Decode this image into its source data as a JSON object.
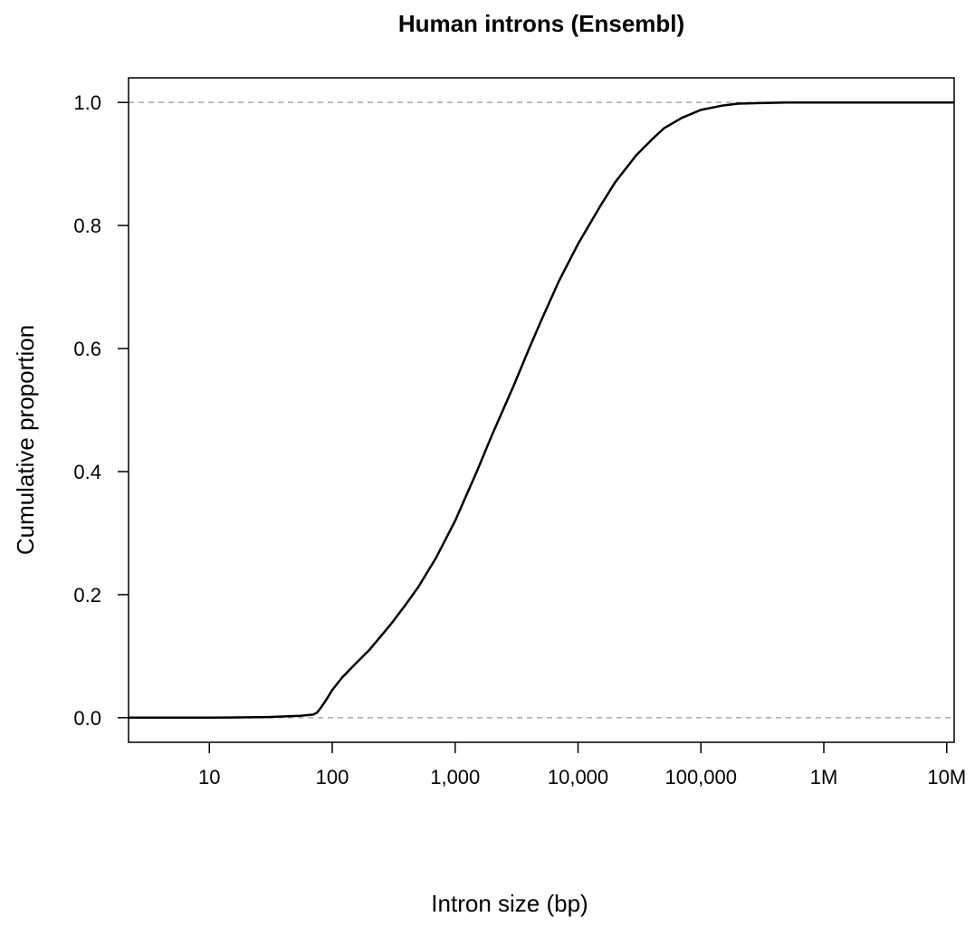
{
  "chart_data": {
    "type": "line",
    "title": "Human introns (Ensembl)",
    "xlabel": "Intron size (bp)",
    "ylabel": "Cumulative proportion",
    "x_scale": "log10",
    "xlim": [
      2.2,
      11500000
    ],
    "ylim": [
      -0.04,
      1.04
    ],
    "x_ticks": [
      {
        "value": 10,
        "label": "10"
      },
      {
        "value": 100,
        "label": "100"
      },
      {
        "value": 1000,
        "label": "1,000"
      },
      {
        "value": 10000,
        "label": "10,000"
      },
      {
        "value": 100000,
        "label": "100,000"
      },
      {
        "value": 1000000,
        "label": "1M"
      },
      {
        "value": 10000000,
        "label": "10M"
      }
    ],
    "y_ticks": [
      {
        "value": 0.0,
        "label": "0.0"
      },
      {
        "value": 0.2,
        "label": "0.2"
      },
      {
        "value": 0.4,
        "label": "0.4"
      },
      {
        "value": 0.6,
        "label": "0.6"
      },
      {
        "value": 0.8,
        "label": "0.8"
      },
      {
        "value": 1.0,
        "label": "1.0"
      }
    ],
    "reference_lines": [
      0.0,
      1.0
    ],
    "reference_line_color": "#aaaaaa",
    "line_color": "#000000",
    "grid": false,
    "series": [
      {
        "x": [
          2.2,
          10,
          30,
          55,
          70,
          75,
          80,
          90,
          100,
          120,
          150,
          200,
          250,
          300,
          400,
          500,
          700,
          1000,
          1500,
          2000,
          3000,
          4000,
          5000,
          7000,
          10000,
          15000,
          20000,
          30000,
          40000,
          50000,
          70000,
          100000,
          150000,
          200000,
          300000,
          500000,
          1000000,
          11500000
        ],
        "y": [
          0.0,
          0.0,
          0.001,
          0.003,
          0.005,
          0.008,
          0.015,
          0.03,
          0.045,
          0.065,
          0.085,
          0.11,
          0.133,
          0.152,
          0.185,
          0.212,
          0.26,
          0.32,
          0.4,
          0.46,
          0.54,
          0.6,
          0.645,
          0.71,
          0.77,
          0.83,
          0.87,
          0.915,
          0.94,
          0.958,
          0.975,
          0.988,
          0.995,
          0.998,
          0.999,
          1.0,
          1.0,
          1.0
        ]
      }
    ]
  }
}
